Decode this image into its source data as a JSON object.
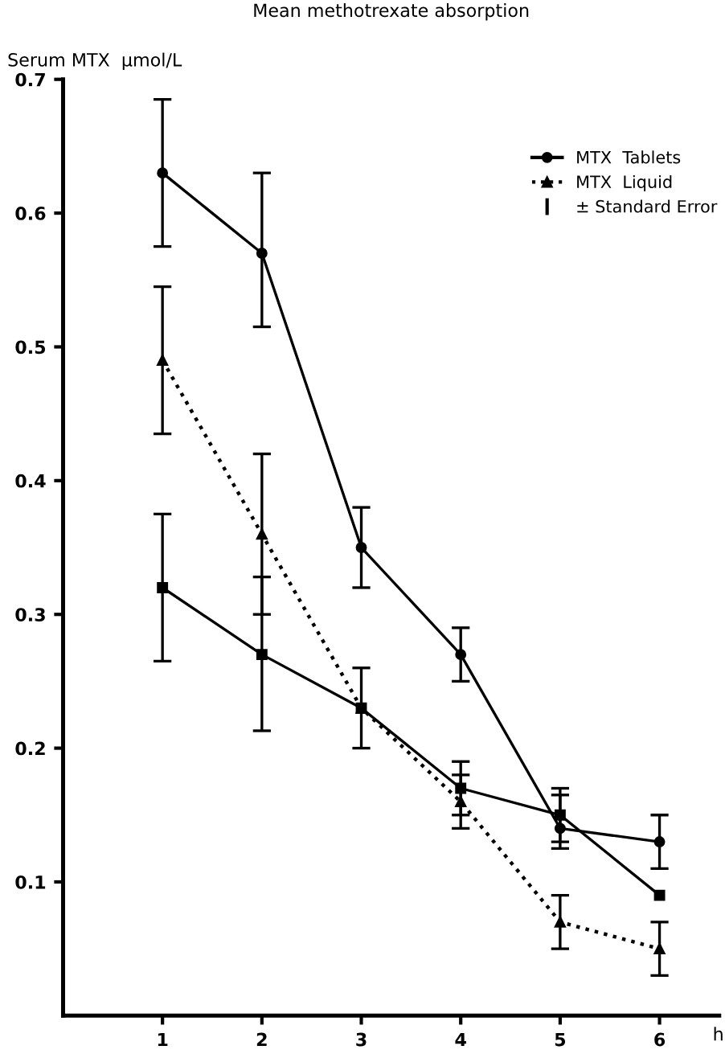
{
  "chart_data": {
    "type": "line",
    "title": "Mean methotrexate absorption",
    "ylabel": "Serum MTX  μmol/L",
    "xlabel": "h",
    "x": [
      1,
      2,
      3,
      4,
      5,
      6
    ],
    "series": [
      {
        "name": "MTX  Tablets",
        "color": "#000000",
        "marker": "circle",
        "line_style": "solid",
        "values": [
          0.63,
          0.57,
          0.35,
          0.27,
          0.14,
          0.13
        ],
        "errors": [
          [
            0.575,
            0.685
          ],
          [
            0.515,
            0.63
          ],
          [
            0.32,
            0.38
          ],
          [
            0.25,
            0.29
          ],
          [
            0.125,
            0.165
          ],
          [
            0.11,
            0.15
          ]
        ]
      },
      {
        "name": "MTX  Liquid",
        "color": "#000000",
        "marker": "triangle",
        "line_style": "dotted",
        "values": [
          0.49,
          0.36,
          0.23,
          0.16,
          0.07,
          0.05
        ],
        "errors": [
          [
            0.435,
            0.545
          ],
          [
            0.3,
            0.42
          ],
          null,
          [
            0.14,
            0.18
          ],
          [
            0.05,
            0.09
          ],
          [
            0.03,
            0.07
          ]
        ]
      },
      {
        "color": "#000000",
        "marker": "square",
        "line_style": "solid",
        "values": [
          0.32,
          0.27,
          0.23,
          0.17,
          0.15,
          0.09
        ],
        "errors": [
          [
            0.265,
            0.375
          ],
          [
            0.213,
            0.328
          ],
          [
            0.2,
            0.26
          ],
          [
            0.15,
            0.19
          ],
          [
            0.13,
            0.17
          ],
          null
        ]
      }
    ],
    "annotations": [
      "± Standard Error"
    ],
    "xlim": [
      0,
      6.6
    ],
    "ylim": [
      0,
      0.7
    ],
    "xticks": [
      1,
      2,
      3,
      4,
      5,
      6
    ],
    "yticks": [
      0.1,
      0.2,
      0.3,
      0.4,
      0.5,
      0.6,
      0.7
    ],
    "grid": false,
    "legend": "top right"
  }
}
